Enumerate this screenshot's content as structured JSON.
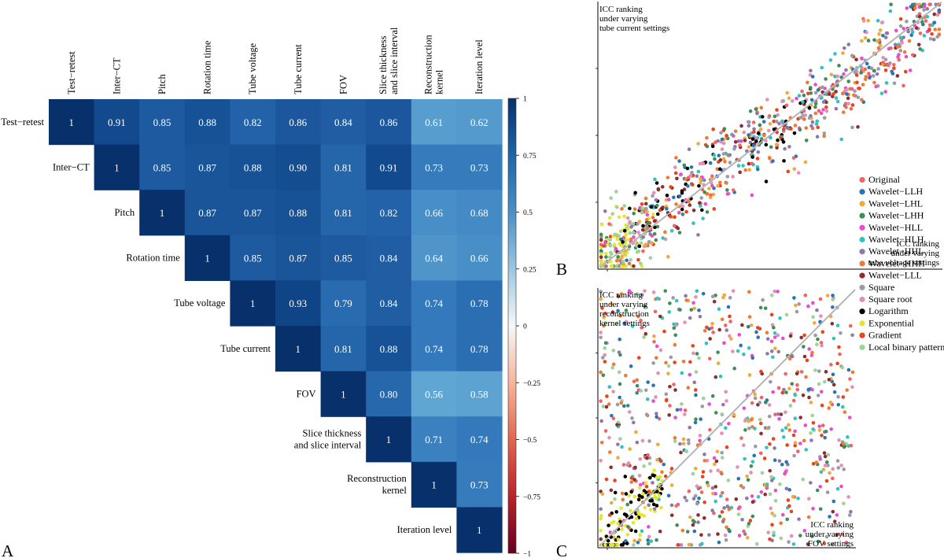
{
  "panel_labels": [
    "A",
    "B",
    "C"
  ],
  "colorbar_ticks": [
    "1",
    "0.75",
    "0.5",
    "0.25",
    "0",
    "−0.25",
    "−0.5",
    "−0.75",
    "−1"
  ],
  "legend": {
    "items": [
      {
        "label": "Original",
        "color": "#f26464"
      },
      {
        "label": "Wavelet−LLH",
        "color": "#2a74b4"
      },
      {
        "label": "Wavelet−LHL",
        "color": "#f2a93b"
      },
      {
        "label": "Wavelet−LHH",
        "color": "#3e8e57"
      },
      {
        "label": "Wavelet−HLL",
        "color": "#e54fcf"
      },
      {
        "label": "Wavelet−HLH",
        "color": "#33c2be"
      },
      {
        "label": "Wavelet−HHL",
        "color": "#8f78a8"
      },
      {
        "label": "Wavelet−HHH",
        "color": "#ee7a33"
      },
      {
        "label": "Wavelet−LLL",
        "color": "#8b2e2e"
      },
      {
        "label": "Square",
        "color": "#9a9aa8"
      },
      {
        "label": "Square root",
        "color": "#e58fb5"
      },
      {
        "label": "Logarithm",
        "color": "#000000"
      },
      {
        "label": "Exponential",
        "color": "#e6e62e"
      },
      {
        "label": "Gradient",
        "color": "#e8441e"
      },
      {
        "label": "Local binary pattern",
        "color": "#9fd19a"
      }
    ]
  },
  "chart_data": [
    {
      "type": "heatmap",
      "panel": "A",
      "color_range": [
        -1,
        1
      ],
      "labels": [
        "Test−retest",
        "Inter−CT",
        "Pitch",
        "Rotation time",
        "Tube voltage",
        "Tube current",
        "FOV",
        "Slice thickness and slice interval",
        "Reconstruction kernel",
        "Iteration level"
      ],
      "col_labels": [
        [
          "Test−retest"
        ],
        [
          "Inter−CT"
        ],
        [
          "Pitch"
        ],
        [
          "Rotation time"
        ],
        [
          "Tube voltage"
        ],
        [
          "Tube current"
        ],
        [
          "FOV"
        ],
        [
          "Slice thickness",
          "and slice interval"
        ],
        [
          "Reconstruction",
          "kernel"
        ],
        [
          "Iteration level"
        ]
      ],
      "row_labels": [
        [
          "Test−retest"
        ],
        [
          "Inter−CT"
        ],
        [
          "Pitch"
        ],
        [
          "Rotation time"
        ],
        [
          "Tube voltage"
        ],
        [
          "Tube current"
        ],
        [
          "FOV"
        ],
        [
          "Slice thickness",
          "and slice interval"
        ],
        [
          "Reconstruction",
          "kernel"
        ],
        [
          "Iteration level"
        ]
      ],
      "matrix": [
        [
          "1",
          "0.91",
          "0.85",
          "0.88",
          "0.82",
          "0.86",
          "0.84",
          "0.86",
          "0.61",
          "0.62"
        ],
        [
          null,
          "1",
          "0.85",
          "0.87",
          "0.88",
          "0.90",
          "0.81",
          "0.91",
          "0.73",
          "0.73"
        ],
        [
          null,
          null,
          "1",
          "0.87",
          "0.87",
          "0.88",
          "0.81",
          "0.82",
          "0.66",
          "0.68"
        ],
        [
          null,
          null,
          null,
          "1",
          "0.85",
          "0.87",
          "0.85",
          "0.84",
          "0.64",
          "0.66"
        ],
        [
          null,
          null,
          null,
          null,
          "1",
          "0.93",
          "0.79",
          "0.84",
          "0.74",
          "0.78"
        ],
        [
          null,
          null,
          null,
          null,
          null,
          "1",
          "0.81",
          "0.88",
          "0.74",
          "0.78"
        ],
        [
          null,
          null,
          null,
          null,
          null,
          null,
          "1",
          "0.80",
          "0.56",
          "0.58"
        ],
        [
          null,
          null,
          null,
          null,
          null,
          null,
          null,
          "1",
          "0.71",
          "0.74"
        ],
        [
          null,
          null,
          null,
          null,
          null,
          null,
          null,
          null,
          "1",
          "0.73"
        ],
        [
          null,
          null,
          null,
          null,
          null,
          null,
          null,
          null,
          null,
          "1"
        ]
      ]
    },
    {
      "type": "scatter",
      "panel": "B",
      "xlabel_lines": [
        "ICC ranking",
        "under varying",
        "tube voltage settings"
      ],
      "ylabel_lines": [
        "ICC ranking",
        "under varying",
        "tube current settings"
      ],
      "xlim": [
        0,
        1
      ],
      "ylim": [
        0,
        1
      ],
      "diagonal": true,
      "correlation": "strong-positive",
      "points_per_category": 60
    },
    {
      "type": "scatter",
      "panel": "C",
      "xlabel_lines": [
        "ICC ranking",
        "under varying",
        "FOV settings"
      ],
      "ylabel_lines": [
        "ICC ranking",
        "under varying",
        "reconstruction",
        "kernel settings"
      ],
      "xlim": [
        0,
        1
      ],
      "ylim": [
        0,
        1
      ],
      "diagonal": true,
      "correlation": "weak",
      "points_per_category": 60
    }
  ]
}
